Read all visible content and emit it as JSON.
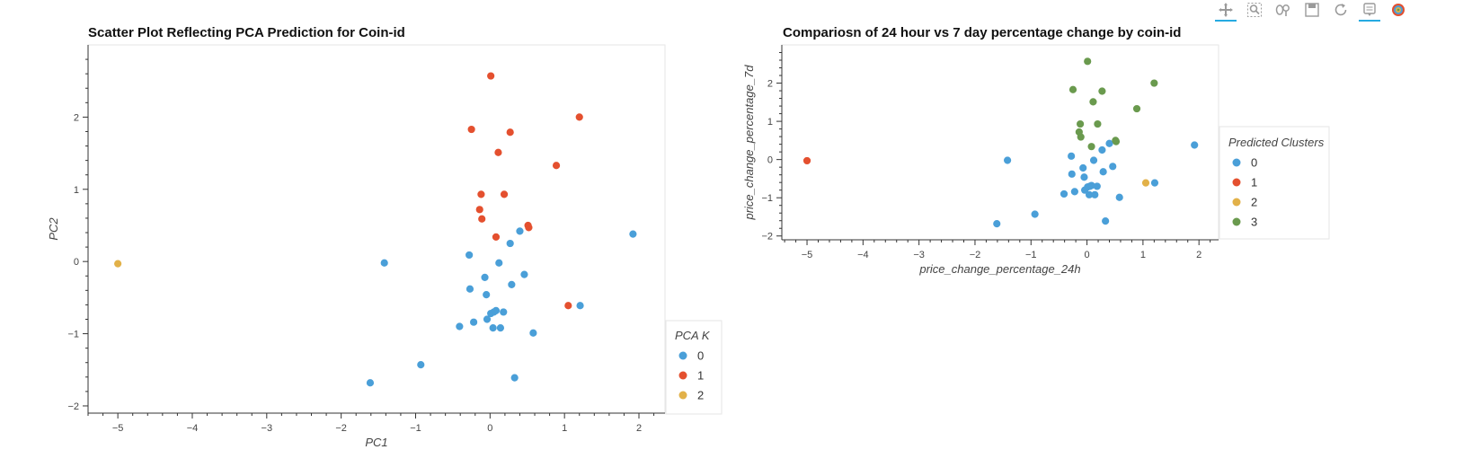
{
  "toolbar": {
    "tools": [
      {
        "icon": "pan-icon",
        "active": true
      },
      {
        "icon": "box-zoom-icon",
        "active": false
      },
      {
        "icon": "wheel-zoom-icon",
        "active": false
      },
      {
        "icon": "save-icon",
        "active": false
      },
      {
        "icon": "reset-icon",
        "active": false
      },
      {
        "icon": "hover-icon",
        "active": true
      },
      {
        "icon": "bokeh-logo-icon",
        "active": false
      }
    ]
  },
  "chart_data": [
    {
      "type": "scatter",
      "title": "Scatter Plot Reflecting PCA Prediction for Coin-id",
      "xlabel": "PC1",
      "ylabel": "PC2",
      "xlim": [
        -5.4,
        2.35
      ],
      "ylim": [
        -2.1,
        3.0
      ],
      "xticks": [
        -5,
        -4,
        -3,
        -2,
        -1,
        0,
        1,
        2
      ],
      "yticks": [
        -2,
        -1,
        0,
        1,
        2
      ],
      "grid": false,
      "legend": {
        "title": "PCA K",
        "placement": "right-bottom"
      },
      "colors": [
        "#4a9fd8",
        "#e4502f",
        "#e2b149"
      ],
      "series": [
        {
          "name": "0",
          "points": [
            [
              -1.42,
              -0.02
            ],
            [
              -1.61,
              -1.68
            ],
            [
              -0.93,
              -1.43
            ],
            [
              -0.28,
              0.09
            ],
            [
              -0.27,
              -0.38
            ],
            [
              -0.22,
              -0.84
            ],
            [
              -0.41,
              -0.9
            ],
            [
              -0.07,
              -0.22
            ],
            [
              -0.05,
              -0.46
            ],
            [
              -0.04,
              -0.8
            ],
            [
              0.01,
              -0.72
            ],
            [
              0.05,
              -0.7
            ],
            [
              0.08,
              -0.68
            ],
            [
              0.04,
              -0.92
            ],
            [
              0.14,
              -0.92
            ],
            [
              0.18,
              -0.7
            ],
            [
              0.12,
              -0.02
            ],
            [
              0.27,
              0.25
            ],
            [
              0.29,
              -0.32
            ],
            [
              0.4,
              0.42
            ],
            [
              0.46,
              -0.18
            ],
            [
              0.33,
              -1.61
            ],
            [
              0.58,
              -0.99
            ],
            [
              1.21,
              -0.61
            ],
            [
              1.92,
              0.38
            ]
          ]
        },
        {
          "name": "1",
          "points": [
            [
              0.01,
              2.57
            ],
            [
              -0.25,
              1.83
            ],
            [
              0.27,
              1.79
            ],
            [
              1.2,
              2.0
            ],
            [
              0.11,
              1.51
            ],
            [
              0.89,
              1.33
            ],
            [
              -0.12,
              0.93
            ],
            [
              0.19,
              0.93
            ],
            [
              -0.14,
              0.72
            ],
            [
              -0.11,
              0.59
            ],
            [
              0.08,
              0.34
            ],
            [
              0.51,
              0.5
            ],
            [
              0.52,
              0.47
            ],
            [
              1.05,
              -0.61
            ]
          ]
        },
        {
          "name": "2",
          "points": [
            [
              -5.0,
              -0.03
            ]
          ]
        }
      ]
    },
    {
      "type": "scatter",
      "title": "Compariosn of 24 hour vs 7 day percentage change by coin-id",
      "xlabel": "price_change_percentage_24h",
      "ylabel": "price_change_percentage_7d",
      "xlim": [
        -5.45,
        2.35
      ],
      "ylim": [
        -2.1,
        3.0
      ],
      "xticks": [
        -5,
        -4,
        -3,
        -2,
        -1,
        0,
        1,
        2
      ],
      "yticks": [
        -2,
        -1,
        0,
        1,
        2
      ],
      "grid": false,
      "legend": {
        "title": "Predicted Clusters",
        "placement": "right-top"
      },
      "colors": [
        "#4a9fd8",
        "#e4502f",
        "#e2b149",
        "#6a9a4e"
      ],
      "series": [
        {
          "name": "0",
          "points": [
            [
              -1.42,
              -0.02
            ],
            [
              -1.61,
              -1.68
            ],
            [
              -0.93,
              -1.43
            ],
            [
              -0.28,
              0.09
            ],
            [
              -0.27,
              -0.38
            ],
            [
              -0.22,
              -0.84
            ],
            [
              -0.41,
              -0.9
            ],
            [
              -0.07,
              -0.22
            ],
            [
              -0.05,
              -0.46
            ],
            [
              -0.04,
              -0.8
            ],
            [
              0.01,
              -0.72
            ],
            [
              0.05,
              -0.7
            ],
            [
              0.08,
              -0.68
            ],
            [
              0.04,
              -0.92
            ],
            [
              0.14,
              -0.92
            ],
            [
              0.18,
              -0.7
            ],
            [
              0.12,
              -0.02
            ],
            [
              0.27,
              0.25
            ],
            [
              0.29,
              -0.32
            ],
            [
              0.4,
              0.42
            ],
            [
              0.46,
              -0.18
            ],
            [
              0.33,
              -1.61
            ],
            [
              0.58,
              -0.99
            ],
            [
              1.21,
              -0.61
            ],
            [
              1.92,
              0.38
            ]
          ]
        },
        {
          "name": "1",
          "points": [
            [
              -5.0,
              -0.03
            ]
          ]
        },
        {
          "name": "2",
          "points": [
            [
              1.05,
              -0.61
            ]
          ]
        },
        {
          "name": "3",
          "points": [
            [
              0.01,
              2.57
            ],
            [
              -0.25,
              1.83
            ],
            [
              0.27,
              1.79
            ],
            [
              1.2,
              2.0
            ],
            [
              0.11,
              1.51
            ],
            [
              0.89,
              1.33
            ],
            [
              -0.12,
              0.93
            ],
            [
              0.19,
              0.93
            ],
            [
              -0.14,
              0.72
            ],
            [
              -0.11,
              0.59
            ],
            [
              0.08,
              0.34
            ],
            [
              0.51,
              0.5
            ],
            [
              0.52,
              0.47
            ]
          ]
        }
      ]
    }
  ]
}
